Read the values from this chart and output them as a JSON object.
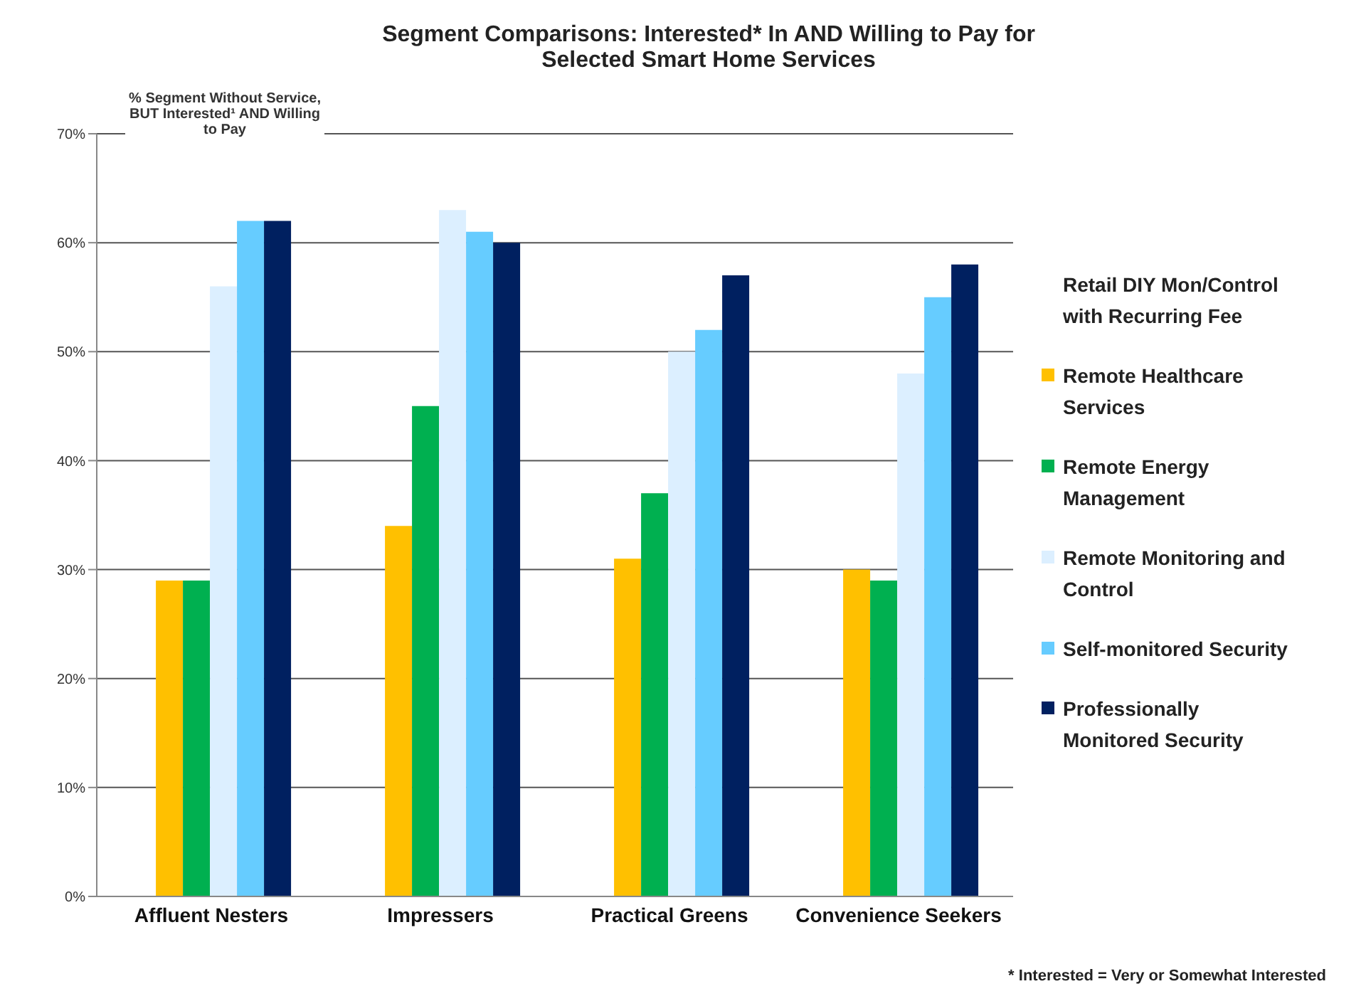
{
  "chart_data": {
    "type": "bar",
    "title": "Segment Comparisons:  Interested* In AND Willing to Pay for Selected Smart Home Services",
    "ylabel": "% Segment Without Service, BUT Interested¹ AND Willing to Pay",
    "categories": [
      "Affluent Nesters",
      "Impressers",
      "Practical Greens",
      "Convenience Seekers"
    ],
    "series": [
      {
        "name": "Retail DIY Mon/Control with Recurring Fee",
        "values": [
          null,
          null,
          null,
          null
        ]
      },
      {
        "name": "Remote Healthcare Services",
        "color": "#ffc000",
        "values": [
          29,
          34,
          31,
          30
        ]
      },
      {
        "name": "Remote Energy Management",
        "color": "#00b050",
        "values": [
          29,
          45,
          37,
          29
        ]
      },
      {
        "name": "Remote Monitoring and Control",
        "color": "#dcefff",
        "values": [
          56,
          63,
          50,
          48
        ]
      },
      {
        "name": "Self-monitored Security",
        "color": "#66ccff",
        "values": [
          62,
          61,
          52,
          55
        ]
      },
      {
        "name": "Professionally Monitored Security",
        "color": "#002060",
        "values": [
          62,
          60,
          57,
          58
        ]
      }
    ],
    "ylim": [
      0,
      70
    ],
    "yticks": [
      {
        "value": 0,
        "label": "0%"
      },
      {
        "value": 10,
        "label": "10%"
      },
      {
        "value": 20,
        "label": "20%"
      },
      {
        "value": 30,
        "label": "30%"
      },
      {
        "value": 40,
        "label": "40%"
      },
      {
        "value": 50,
        "label": "50%"
      },
      {
        "value": 60,
        "label": "60%"
      },
      {
        "value": 70,
        "label": "70%"
      }
    ],
    "grid": "y",
    "legend": "right",
    "annotations": [
      "* Interested = Very or Somewhat Interested"
    ]
  }
}
